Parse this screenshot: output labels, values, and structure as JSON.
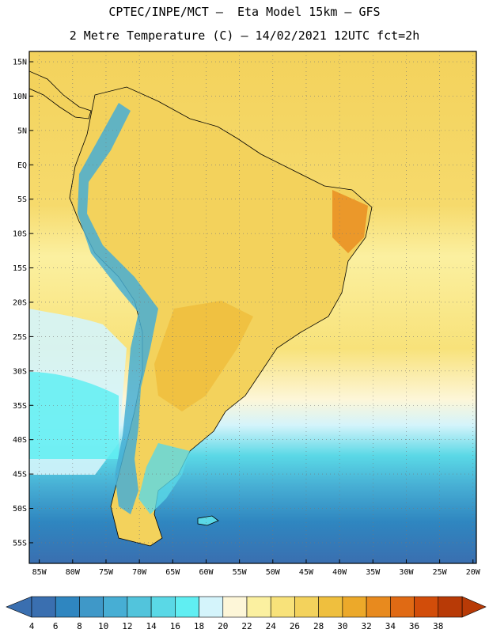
{
  "header": {
    "line1": "CPTEC/INPE/MCT —  Eta Model 15km — GFS",
    "line2": "2 Metre Temperature (C) — 14/02/2021 12UTC fct=2h"
  },
  "map": {
    "lat_labels": [
      "15N",
      "10N",
      "5N",
      "EQ",
      "5S",
      "10S",
      "15S",
      "20S",
      "25S",
      "30S",
      "35S",
      "40S",
      "45S",
      "50S",
      "55S"
    ],
    "lon_labels": [
      "85W",
      "80W",
      "75W",
      "70W",
      "65W",
      "60W",
      "55W",
      "50W",
      "45W",
      "40W",
      "35W",
      "30W",
      "25W",
      "20W"
    ],
    "lat_range": [
      16.5,
      -58.0
    ],
    "lon_range": [
      -86.5,
      -19.5
    ]
  },
  "colorbar": {
    "labels": [
      "4",
      "6",
      "8",
      "10",
      "12",
      "14",
      "16",
      "18",
      "20",
      "22",
      "24",
      "26",
      "28",
      "30",
      "32",
      "34",
      "36",
      "38"
    ],
    "colors": [
      "#3a6fb0",
      "#2f86c0",
      "#3f98c8",
      "#47aed4",
      "#52c4dc",
      "#5ad8e6",
      "#60eef2",
      "#d4f4fb",
      "#fdf6d8",
      "#fbf0a0",
      "#f8e27a",
      "#f3d25c",
      "#efbf3e",
      "#eca92a",
      "#e88a1e",
      "#e06a14",
      "#d24d0a",
      "#b83a06"
    ],
    "low_arrow_color": "#3a6fb0",
    "high_arrow_color": "#b83a06"
  }
}
